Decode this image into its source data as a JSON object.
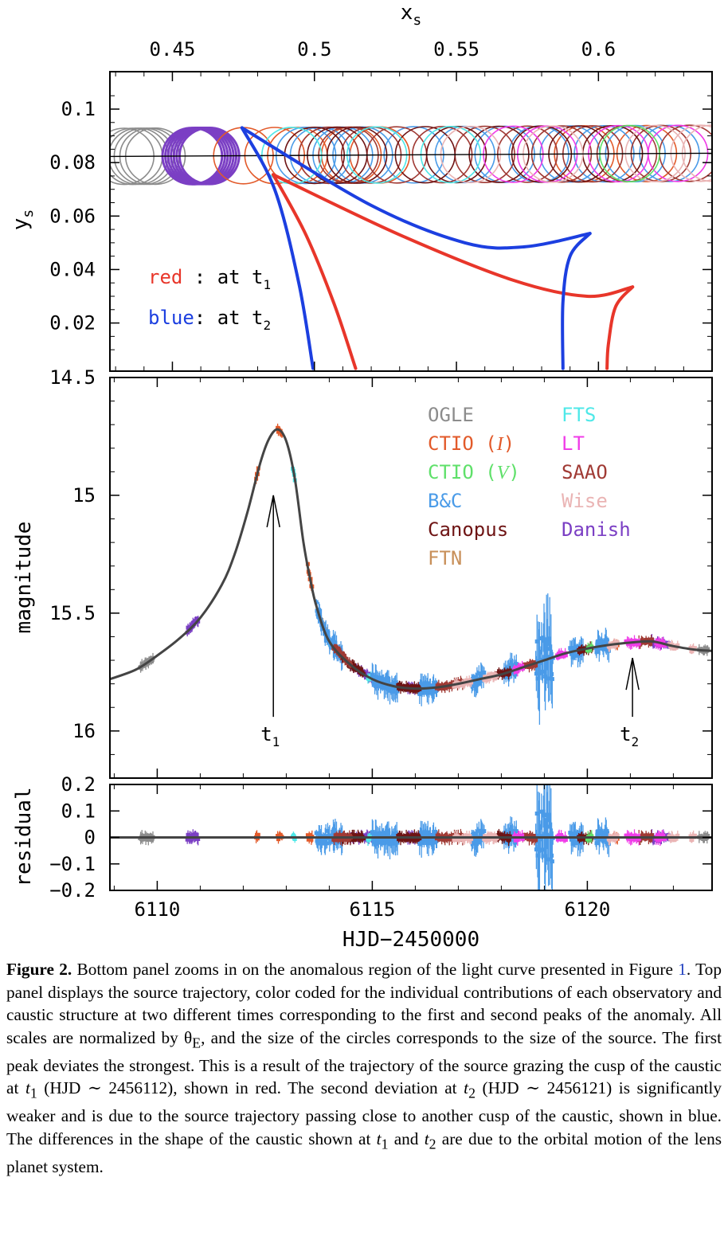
{
  "chart_data": [
    {
      "type": "scatter",
      "panel": "top",
      "xlabel": "x",
      "xlabel_sub": "s",
      "ylabel": "y",
      "ylabel_sub": "s",
      "xlim": [
        0.428,
        0.64
      ],
      "ylim": [
        0.002,
        0.114
      ],
      "xticks": [
        0.45,
        0.5,
        0.55,
        0.6
      ],
      "xtick_labels": [
        "0.45",
        "0.5",
        "0.55",
        "0.6"
      ],
      "yticks": [
        0.02,
        0.04,
        0.06,
        0.08,
        0.1
      ],
      "ytick_labels": [
        "0.02",
        "0.04",
        "0.06",
        "0.08",
        "0.1"
      ],
      "annotations": [
        {
          "text": "red",
          "rest": " : at t",
          "sub": "1",
          "color": "#e8362a"
        },
        {
          "text": "blue",
          "rest": ": at t",
          "sub": "2",
          "color": "#1c3fe0"
        }
      ],
      "trajectory": {
        "x": [
          0.428,
          0.64
        ],
        "y": [
          0.0823,
          0.0835
        ]
      },
      "source_radius": 0.0105,
      "source_circles": [
        {
          "name": "OGLE",
          "color": "#8c8c8c",
          "x": [
            0.433,
            0.436,
            0.438,
            0.44,
            0.442,
            0.444
          ]
        },
        {
          "name": "Danish",
          "color": "#7b3fc4",
          "x": [
            0.457,
            0.458,
            0.459,
            0.46,
            0.461,
            0.462,
            0.463
          ]
        },
        {
          "name": "CTIO (I)",
          "color": "#e25a2a",
          "x": [
            0.475,
            0.486,
            0.494,
            0.505,
            0.513,
            0.523,
            0.595,
            0.617
          ]
        },
        {
          "name": "B&C",
          "color": "#4a9be8",
          "x": [
            0.497,
            0.502,
            0.51,
            0.517,
            0.535,
            0.553,
            0.567,
            0.579,
            0.59,
            0.602,
            0.613,
            0.625
          ]
        },
        {
          "name": "SAAO",
          "color": "#a03a34",
          "x": [
            0.505,
            0.512,
            0.52,
            0.529,
            0.545,
            0.56,
            0.575,
            0.587,
            0.598,
            0.61,
            0.622,
            0.632
          ]
        },
        {
          "name": "Canopus",
          "color": "#6e1414",
          "x": [
            0.5,
            0.508,
            0.515,
            0.539,
            0.55,
            0.565,
            0.58,
            0.593,
            0.605
          ]
        },
        {
          "name": "FTS",
          "color": "#4fe8e8",
          "x": [
            0.492,
            0.522,
            0.548
          ]
        },
        {
          "name": "LT",
          "color": "#f03ce8",
          "x": [
            0.57,
            0.582,
            0.607,
            0.628
          ]
        },
        {
          "name": "Wise",
          "color": "#eab4b4",
          "x": [
            0.555,
            0.584,
            0.62,
            0.636,
            0.64
          ]
        },
        {
          "name": "CTIO (V)",
          "color": "#5fe06a",
          "x": [
            0.611
          ]
        }
      ],
      "caustics": [
        {
          "name": "at t1",
          "color": "#e8362a",
          "left": {
            "x": [
              0.4855,
              0.497,
              0.507,
              0.5145
            ],
            "y": [
              0.0755,
              0.053,
              0.027,
              0.003
            ]
          },
          "top": {
            "x": [
              0.4855,
              0.53,
              0.57,
              0.596,
              0.612
            ],
            "y": [
              0.0755,
              0.053,
              0.036,
              0.03,
              0.0335
            ]
          },
          "right": {
            "x": [
              0.612,
              0.606,
              0.6035,
              0.603
            ],
            "y": [
              0.0335,
              0.026,
              0.012,
              0.003
            ]
          }
        },
        {
          "name": "at t2",
          "color": "#1c3fe0",
          "left": {
            "x": [
              0.4745,
              0.486,
              0.4945,
              0.4995
            ],
            "y": [
              0.093,
              0.07,
              0.035,
              0.003
            ]
          },
          "top": {
            "x": [
              0.4745,
              0.52,
              0.553,
              0.574,
              0.597
            ],
            "y": [
              0.093,
              0.064,
              0.05,
              0.0485,
              0.0535
            ]
          },
          "right": {
            "x": [
              0.597,
              0.59,
              0.5875,
              0.5875
            ],
            "y": [
              0.0535,
              0.045,
              0.028,
              0.003
            ]
          }
        }
      ]
    },
    {
      "type": "scatter",
      "panel": "middle",
      "ylabel": "magnitude",
      "xlim": [
        6108.9,
        6122.9
      ],
      "ylim": [
        14.5,
        16.2
      ],
      "yticks": [
        14.5,
        15,
        15.5,
        16
      ],
      "ytick_labels": [
        "14.5",
        "15",
        "15.5",
        "16"
      ],
      "model_curve": {
        "x": [
          6108.9,
          6109.5,
          6110,
          6110.5,
          6111,
          6111.5,
          6111.8,
          6112.1,
          6112.4,
          6112.6,
          6112.8,
          6113,
          6113.2,
          6113.4,
          6113.55,
          6113.7,
          6114,
          6114.5,
          6115,
          6115.5,
          6116,
          6116.5,
          6117,
          6117.5,
          6118,
          6118.5,
          6119,
          6119.5,
          6120,
          6120.5,
          6121,
          6121.5,
          6122,
          6122.5,
          6122.9
        ],
        "y": [
          15.78,
          15.74,
          15.68,
          15.61,
          15.52,
          15.38,
          15.25,
          15.07,
          14.86,
          14.76,
          14.72,
          14.77,
          14.93,
          15.2,
          15.35,
          15.47,
          15.62,
          15.72,
          15.78,
          15.81,
          15.82,
          15.815,
          15.8,
          15.78,
          15.76,
          15.73,
          15.7,
          15.67,
          15.65,
          15.635,
          15.625,
          15.62,
          15.64,
          15.655,
          15.66
        ]
      },
      "annotations": [
        {
          "label": "t",
          "sub": "1",
          "x": 6112.7,
          "arrow_from": 15.94,
          "arrow_to": 15.0
        },
        {
          "label": "t",
          "sub": "2",
          "x": 6121.05,
          "arrow_from": 15.94,
          "arrow_to": 15.69
        }
      ],
      "legend": {
        "placement": "top-right",
        "entries": [
          {
            "name": "OGLE",
            "color": "#8c8c8c"
          },
          {
            "name": "CTIO (I)",
            "color": "#e25a2a"
          },
          {
            "name": "CTIO (V)",
            "color": "#5fe06a"
          },
          {
            "name": "B&C",
            "color": "#4a9be8"
          },
          {
            "name": "Canopus",
            "color": "#6e1414"
          },
          {
            "name": "FTN",
            "color": "#c8905a"
          },
          {
            "name": "FTS",
            "color": "#4fe8e8"
          },
          {
            "name": "LT",
            "color": "#f03ce8"
          },
          {
            "name": "SAAO",
            "color": "#a03a34"
          },
          {
            "name": "Wise",
            "color": "#eab4b4"
          },
          {
            "name": "Danish",
            "color": "#7b3fc4"
          }
        ]
      },
      "observatory_ranges": [
        {
          "name": "OGLE",
          "color": "#8c8c8c",
          "ranges": [
            [
              6109.6,
              6109.9
            ],
            [
              6113.8,
              6113.9
            ],
            [
              6122.6,
              6122.8
            ]
          ]
        },
        {
          "name": "Danish",
          "color": "#7b3fc4",
          "ranges": [
            [
              6110.7,
              6110.95
            ],
            [
              6114.5,
              6115.3
            ],
            [
              6115.8,
              6116.4
            ],
            [
              6121.5,
              6121.9
            ]
          ]
        },
        {
          "name": "CTIO (I)",
          "color": "#e25a2a",
          "ranges": [
            [
              6112.3,
              6112.35
            ],
            [
              6112.8,
              6112.9
            ],
            [
              6113.5,
              6113.6
            ],
            [
              6120.6,
              6120.7
            ]
          ]
        },
        {
          "name": "FTS",
          "color": "#4fe8e8",
          "ranges": [
            [
              6113.15,
              6113.2
            ],
            [
              6114,
              6114.05
            ],
            [
              6114.9,
              6115
            ]
          ]
        },
        {
          "name": "B&C",
          "color": "#4a9be8",
          "ranges": [
            [
              6113.7,
              6114.3
            ],
            [
              6115,
              6115.6
            ],
            [
              6116.1,
              6116.5
            ],
            [
              6117.3,
              6117.6
            ],
            [
              6118.05,
              6118.35
            ],
            [
              6118.8,
              6119.2
            ],
            [
              6119.6,
              6119.9
            ],
            [
              6120.2,
              6120.5
            ]
          ]
        },
        {
          "name": "Canopus",
          "color": "#6e1414",
          "ranges": [
            [
              6114.3,
              6114.8
            ],
            [
              6115.6,
              6116.1
            ],
            [
              6117.9,
              6118.2
            ],
            [
              6119.8,
              6120.1
            ]
          ]
        },
        {
          "name": "SAAO",
          "color": "#a03a34",
          "ranges": [
            [
              6114.1,
              6114.5
            ],
            [
              6116.5,
              6117.1
            ],
            [
              6118.5,
              6118.8
            ],
            [
              6121.2,
              6121.5
            ]
          ]
        },
        {
          "name": "Wise",
          "color": "#eab4b4",
          "ranges": [
            [
              6116.9,
              6117.3
            ],
            [
              6117.6,
              6117.9
            ],
            [
              6120.5,
              6120.7
            ],
            [
              6121.9,
              6122.1
            ],
            [
              6122.4,
              6122.5
            ]
          ]
        },
        {
          "name": "LT",
          "color": "#f03ce8",
          "ranges": [
            [
              6118.3,
              6118.5
            ],
            [
              6119.3,
              6119.5
            ],
            [
              6120.9,
              6121.2
            ],
            [
              6121.6,
              6121.8
            ]
          ]
        },
        {
          "name": "CTIO (V)",
          "color": "#5fe06a",
          "ranges": [
            [
              6120.0,
              6120.1
            ]
          ]
        }
      ]
    },
    {
      "type": "scatter",
      "panel": "bottom",
      "xlabel": "HJD−2450000",
      "ylabel": "residual",
      "xlim": [
        6108.9,
        6122.9
      ],
      "ylim": [
        -0.2,
        0.2
      ],
      "xticks": [
        6110,
        6115,
        6120
      ],
      "xtick_labels": [
        "6110",
        "6115",
        "6120"
      ],
      "yticks": [
        -0.2,
        -0.1,
        0,
        0.1,
        0.2
      ],
      "ytick_labels": [
        "−0.2",
        "−0.1",
        "0",
        "0.1",
        "0.2"
      ]
    }
  ],
  "caption": {
    "label": "Figure 2.",
    "p1": " Bottom panel zooms in on the anomalous region of the light curve presented in Figure ",
    "ref": "1",
    "p2": ". Top panel displays the source trajectory, color coded for the individual contributions of each observatory and caustic structure at two different times corresponding to the first and second peaks of the anomaly. All scales are normalized by θ",
    "sub_e": "E",
    "p3": ", and the size of the circles corresponds to the size of the source. The first peak deviates the strongest. This is a result of the trajectory of the source grazing the cusp of the caustic at ",
    "t1": "t",
    "t1_sub": "1",
    "p4": " (HJD ∼ 2456112), shown in red. The second deviation at ",
    "t2": "t",
    "t2_sub": "2",
    "p5": " (HJD ∼ 2456121) is significantly weaker and is due to the source trajectory passing close to another cusp of the caustic, shown in blue. The differences in the shape of the caustic shown at ",
    "t1b": "t",
    "t1b_sub": "1",
    "p6": " and ",
    "t2b": "t",
    "t2b_sub": "2",
    "p7": " are due to the orbital motion of the lens planet system."
  }
}
